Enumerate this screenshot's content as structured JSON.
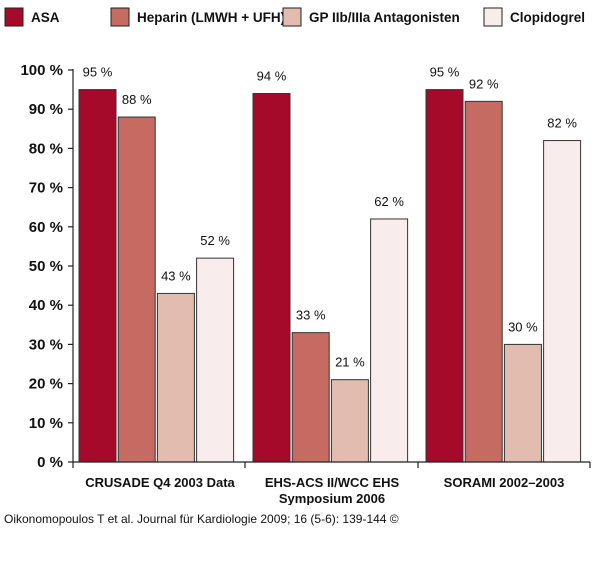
{
  "chart_data": {
    "type": "bar",
    "title": "",
    "xlabel": "",
    "ylabel": "",
    "ylim": [
      0,
      100
    ],
    "yticks": [
      "0 %",
      "10 %",
      "20 %",
      "30 %",
      "40 %",
      "50 %",
      "60 %",
      "70 %",
      "80 %",
      "90 %",
      "100 %"
    ],
    "categories": [
      [
        "CRUSADE Q4 2003 Data"
      ],
      [
        "EHS-ACS II/WCC EHS",
        "Symposium 2006"
      ],
      [
        "SORAMI 2002–2003"
      ]
    ],
    "series": [
      {
        "name": "ASA",
        "color": "#a50a2b",
        "values": [
          95,
          94,
          95
        ],
        "labels": [
          "95 %",
          "94 %",
          "95 %"
        ]
      },
      {
        "name": "Heparin (LMWH + UFH)",
        "color": "#c66b62",
        "values": [
          88,
          33,
          92
        ],
        "labels": [
          "88 %",
          "33 %",
          "92 %"
        ]
      },
      {
        "name": "GP IIb/IIIa Antagonisten",
        "color": "#e2bcae",
        "values": [
          43,
          21,
          30
        ],
        "labels": [
          "43 %",
          "21 %",
          "30 %"
        ]
      },
      {
        "name": "Clopidogrel",
        "color": "#f9ecec",
        "values": [
          52,
          62,
          82
        ],
        "labels": [
          "52 %",
          "62 %",
          "82 %"
        ]
      }
    ],
    "legend_position": "top"
  },
  "source": "Oikonomopoulos T et al. Journal für Kardiologie 2009; 16 (5-6): 139-144 ©"
}
